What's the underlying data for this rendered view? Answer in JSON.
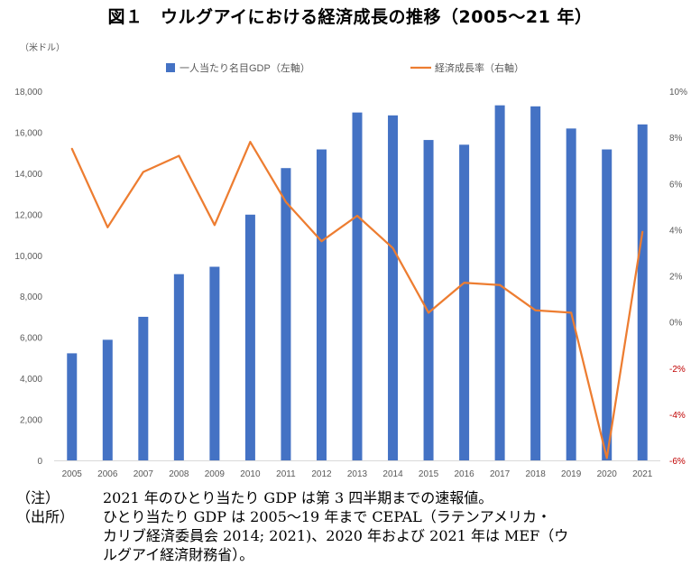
{
  "title": "図１　ウルグアイにおける経済成長の推移（2005〜21 年）",
  "chart_data": {
    "type": "bar",
    "categories": [
      "2005",
      "2006",
      "2007",
      "2008",
      "2009",
      "2010",
      "2011",
      "2012",
      "2013",
      "2014",
      "2015",
      "2016",
      "2017",
      "2018",
      "2019",
      "2020",
      "2021"
    ],
    "series": [
      {
        "name": "一人当たり名目GDP（左軸）",
        "type": "bar",
        "axis": "left",
        "color": "#4472C4",
        "values": [
          5220,
          5880,
          7000,
          9080,
          9440,
          11980,
          14250,
          15160,
          16960,
          16820,
          15620,
          15390,
          17310,
          17260,
          16180,
          15160,
          16380
        ]
      },
      {
        "name": "経済成長率（右軸）",
        "type": "line",
        "axis": "right",
        "color": "#ED7D31",
        "values": [
          7.5,
          4.1,
          6.5,
          7.2,
          4.2,
          7.8,
          5.2,
          3.5,
          4.6,
          3.2,
          0.4,
          1.7,
          1.6,
          0.5,
          0.4,
          -5.9,
          3.9
        ]
      }
    ],
    "left_axis": {
      "unit_label": "（米ドル）",
      "ylim": [
        0,
        18000
      ],
      "ticks": [
        "0",
        "2,000",
        "4,000",
        "6,000",
        "8,000",
        "10,000",
        "12,000",
        "14,000",
        "16,000",
        "18,000"
      ]
    },
    "right_axis": {
      "ylim": [
        -6,
        10
      ],
      "ticks": [
        "-6%",
        "-4%",
        "-2%",
        "0%",
        "2%",
        "4%",
        "6%",
        "8%",
        "10%"
      ],
      "negative_color": "#C00000"
    },
    "legend_position": "top",
    "grid": false
  },
  "notes": {
    "note_label": "（注）",
    "note_text": "2021 年のひとり当たり GDP は第 3 四半期までの速報値。",
    "source_label": "（出所）",
    "source_line1": "ひとり当たり GDP は 2005〜19 年まで CEPAL（ラテンアメリカ・",
    "source_line2": "カリブ経済委員会 2014; 2021)、2020 年および 2021 年は MEF（ウ",
    "source_line3": "ルグアイ経済財務省）。"
  }
}
